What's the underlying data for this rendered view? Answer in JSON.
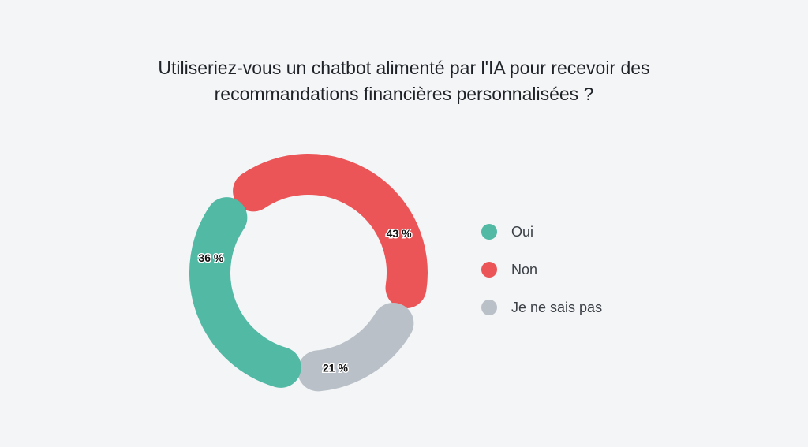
{
  "chart_data": {
    "type": "pie",
    "variant": "donut",
    "title": "Utiliseriez-vous un chatbot alimenté par l'IA pour recevoir des recommandations financières personnalisées ?",
    "title_lines": [
      "Utiliseriez-vous un chatbot alimenté par l'IA pour recevoir des",
      "recommandations financières personnalisées ?"
    ],
    "legend_position": "right",
    "slices": [
      {
        "name": "Oui",
        "value": 36,
        "label": "36 %",
        "color": "#52b9a5"
      },
      {
        "name": "Non",
        "value": 43,
        "label": "43 %",
        "color": "#eb5557"
      },
      {
        "name": "Je ne sais pas",
        "value": 21,
        "label": "21 %",
        "color": "#b9c0c8"
      }
    ]
  }
}
